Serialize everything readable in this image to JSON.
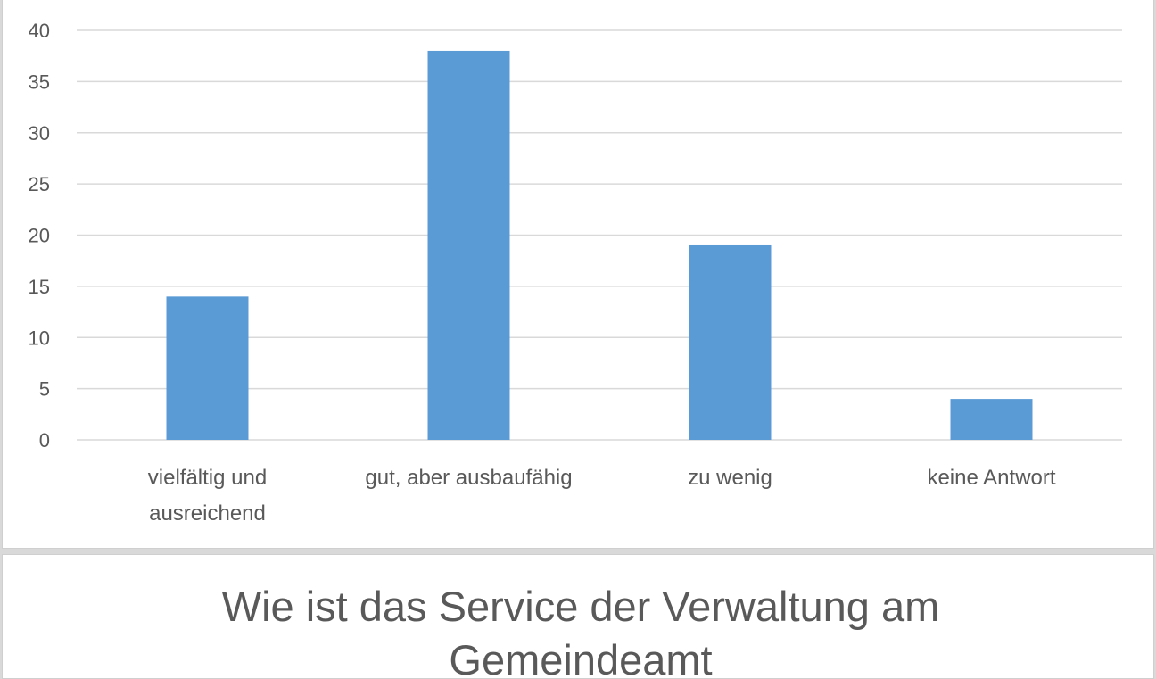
{
  "chart_data": {
    "type": "bar",
    "title": "Wie ist das Service der Verwaltung am\nGemeindeamt",
    "categories": [
      "vielfältig und\nausreichend",
      "gut, aber ausbaufähig",
      "zu wenig",
      "keine Antwort"
    ],
    "values": [
      14,
      38,
      19,
      4
    ],
    "ylim": [
      0,
      40
    ],
    "yticks": [
      0,
      5,
      10,
      15,
      20,
      25,
      30,
      35,
      40
    ],
    "grid": true,
    "legend": "none",
    "colors": {
      "bar": "#5b9bd5",
      "grid": "#d9d9d9",
      "axis": "#d9d9d9",
      "text": "#595959"
    }
  }
}
